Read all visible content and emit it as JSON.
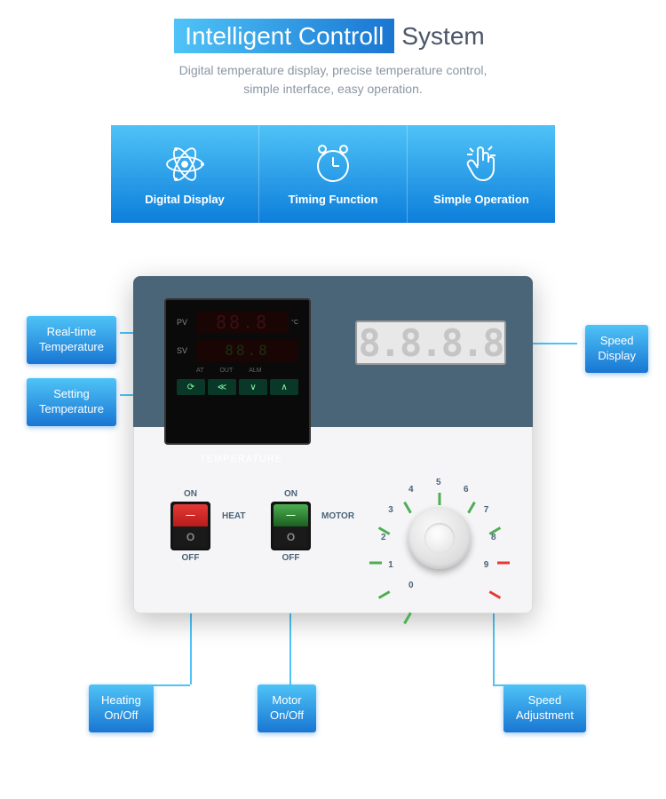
{
  "header": {
    "title_highlight": "Intelligent Controll",
    "title_rest": "System",
    "subtitle_line1": "Digital temperature display, precise temperature control,",
    "subtitle_line2": "simple interface, easy operation."
  },
  "features": [
    {
      "label": "Digital Display",
      "icon": "atom"
    },
    {
      "label": "Timing Function",
      "icon": "clock"
    },
    {
      "label": "Simple Operation",
      "icon": "hand"
    }
  ],
  "pid": {
    "pv_label": "PV",
    "sv_label": "SV",
    "pv_value": "88.8",
    "sv_value": "88.8",
    "unit": "°C",
    "indicators": [
      "AT",
      "OUT",
      "ALM"
    ],
    "buttons": [
      "⟳",
      "≪",
      "∨",
      "∧"
    ],
    "title": "TEMPERATURE"
  },
  "speed_display": "8.8.8.8",
  "switches": {
    "on": "ON",
    "off": "OFF",
    "heat_label": "HEAT",
    "motor_label": "MOTOR",
    "rocker_top": "—",
    "rocker_bot": "O"
  },
  "dial": {
    "ticks": [
      {
        "n": "0",
        "deg": -150,
        "color": "#4caf50"
      },
      {
        "n": "1",
        "deg": -120,
        "color": "#4caf50"
      },
      {
        "n": "2",
        "deg": -90,
        "color": "#4caf50"
      },
      {
        "n": "3",
        "deg": -60,
        "color": "#4caf50"
      },
      {
        "n": "4",
        "deg": -30,
        "color": "#4caf50"
      },
      {
        "n": "5",
        "deg": 0,
        "color": "#4caf50"
      },
      {
        "n": "6",
        "deg": 30,
        "color": "#4caf50"
      },
      {
        "n": "7",
        "deg": 60,
        "color": "#4caf50"
      },
      {
        "n": "8",
        "deg": 90,
        "color": "#e53935"
      },
      {
        "n": "9",
        "deg": 120,
        "color": "#e53935"
      }
    ]
  },
  "callouts": {
    "rt": "Real-time\nTemperature",
    "st": "Setting\nTemperature",
    "sd": "Speed\nDisplay",
    "ho": "Heating\nOn/Off",
    "mo": "Motor\nOn/Off",
    "sa": "Speed\nAdjustment"
  },
  "colors": {
    "gradient_start": "#4fc3f7",
    "gradient_end": "#1976d2",
    "panel_top": "#4a6478"
  }
}
